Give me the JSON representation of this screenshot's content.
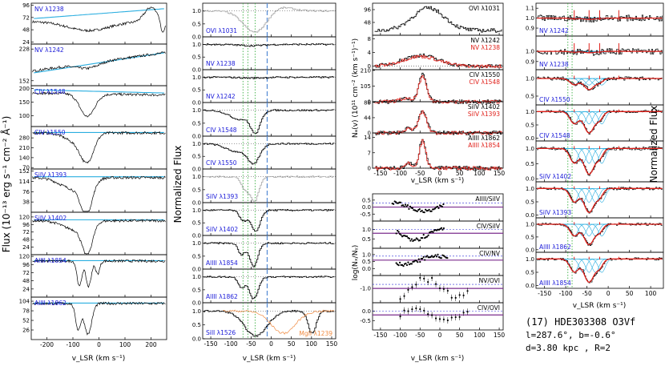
{
  "figure": {
    "info_title": "(17) HDE303308 O3Vf",
    "info_coords": "l=287.6°, b=-0.6°",
    "info_dist": "d=3.80 kpc , R=2",
    "colors": {
      "data": "#000000",
      "continuum": "#2aaee0",
      "fit": "#e0201a",
      "dotted_green": "#3cb043",
      "dashed_blue": "#5b8fd6",
      "ratio_line": "#7b2d8e",
      "ratio_dash": "#2a2ad8",
      "grey": "#a9a9a9",
      "orange": "#f08a40",
      "label_blue": "#1a1ad8"
    }
  },
  "chart_data": [
    {
      "id": "flux-column",
      "type": "line",
      "ylabel": "Flux (10⁻¹³ erg s⁻¹ cm⁻² Å⁻¹)",
      "xlabel": "v_LSR (km s⁻¹)",
      "xlim": [
        -260,
        260
      ],
      "xticks": [
        -200,
        -100,
        0,
        100,
        200
      ],
      "xticklabels": [
        "-200",
        "-100",
        "0",
        "100",
        "200"
      ],
      "panels": [
        {
          "label": "NV λ1238",
          "ylim": [
            20,
            100
          ],
          "yticks": [
            24,
            48,
            72,
            96
          ]
        },
        {
          "label": "NV λ1242",
          "ylim": [
            140,
            240
          ],
          "yticks": [
            152,
            228
          ]
        },
        {
          "label": "CIV λ1548",
          "ylim": [
            60,
            210
          ],
          "yticks": [
            100,
            150,
            200
          ]
        },
        {
          "label": "CIV λ1550",
          "ylim": [
            60,
            360
          ],
          "yticks": [
            70,
            140,
            210,
            280,
            350
          ]
        },
        {
          "label": "SiIV λ1393",
          "ylim": [
            0,
            160
          ],
          "yticks": [
            38,
            76,
            114,
            152
          ]
        },
        {
          "label": "SiIV λ1402",
          "ylim": [
            0,
            135
          ],
          "yticks": [
            24,
            48,
            72,
            96,
            120
          ]
        },
        {
          "label": "AlIII λ1854",
          "ylim": [
            0,
            125
          ],
          "yticks": [
            24,
            48,
            72,
            96,
            120
          ]
        },
        {
          "label": "AlIII λ1862",
          "ylim": [
            0,
            115
          ],
          "yticks": [
            26,
            52,
            78,
            104
          ]
        }
      ]
    },
    {
      "id": "normalized-column",
      "type": "line",
      "ylabel": "Normalized Flux",
      "xlabel": "v_LSR (km s⁻¹)",
      "xlim": [
        -170,
        160
      ],
      "xticks": [
        -150,
        -100,
        -50,
        0,
        50,
        100,
        150
      ],
      "xticklabels": [
        "-150",
        "-100",
        "-50",
        "0",
        "50",
        "100",
        "150"
      ],
      "ylim": [
        0,
        1.3
      ],
      "yticks": [
        0.0,
        0.5,
        1.0
      ],
      "yticklabels": [
        "0.0",
        "0.5",
        "1.0"
      ],
      "reference_lines": {
        "dotted_green": [
          -70,
          -58,
          -40
        ],
        "dashed_blue": [
          -10
        ]
      },
      "panels": [
        {
          "label": "OVI λ1031"
        },
        {
          "label": "NV λ1238"
        },
        {
          "label": "NV λ1242"
        },
        {
          "label": "CIV λ1548"
        },
        {
          "label": "CIV λ1550"
        },
        {
          "label": "SiIV λ1393"
        },
        {
          "label": "SiIV λ1402"
        },
        {
          "label": "AlIII λ1854"
        },
        {
          "label": "AlIII λ1862"
        },
        {
          "label": "SiII λ1526",
          "label2": "MgII λ1239"
        }
      ]
    },
    {
      "id": "column-density",
      "type": "line",
      "ylabel": "Nₐ(v) (10¹¹ cm⁻² (km s⁻¹)⁻¹)",
      "xlabel": "v_LSR (km s⁻¹)",
      "xlim": [
        -170,
        160
      ],
      "xticks": [
        -150,
        -100,
        -50,
        0,
        50,
        100,
        150
      ],
      "xticklabels": [
        "-150",
        "-100",
        "-50",
        "0",
        "50",
        "100",
        "150"
      ],
      "panels": [
        {
          "label": "OVI λ1031",
          "ylim": [
            0,
            120
          ],
          "yticks": [
            48,
            96
          ]
        },
        {
          "label": "NV λ1242",
          "label2": "NV λ1238",
          "ylim": [
            -1,
            9
          ],
          "yticks": [
            0,
            4,
            8
          ]
        },
        {
          "label": "CIV λ1550",
          "label2": "CIV λ1548",
          "ylim": [
            0,
            215
          ],
          "yticks": [
            0,
            105,
            210
          ]
        },
        {
          "label": "SiIV λ1402",
          "label2": "SiIV λ1393",
          "ylim": [
            0,
            90
          ],
          "yticks": [
            0,
            44,
            88
          ]
        },
        {
          "label": "AlIII λ1862",
          "label2": "AlIII λ1854",
          "ylim": [
            0,
            16
          ],
          "yticks": [
            0,
            7,
            14
          ]
        }
      ]
    },
    {
      "id": "ratio-column",
      "type": "scatter",
      "ylabel": "log(Nₓ/Nᵧ)",
      "xlabel": "v_LSR (km s⁻¹)",
      "xlim": [
        -170,
        160
      ],
      "xticks": [
        -150,
        -100,
        -50,
        0,
        50,
        100,
        150
      ],
      "xticklabels": [
        "-150",
        "-100",
        "-50",
        "0",
        "50",
        "100",
        "150"
      ],
      "panels": [
        {
          "label": "AlIII/SiIV",
          "yticks": [
            -0.5,
            0.0,
            0.5
          ],
          "yticklabels": [
            "-0.5",
            "0.0",
            "0.5"
          ],
          "ref": 0.0
        },
        {
          "label": "CIV/SiIV",
          "yticks": [
            0.5,
            1.0
          ],
          "yticklabels": [
            "0.5",
            "1.0"
          ],
          "ref": 0.8
        },
        {
          "label": "CIV/NV",
          "yticks": [
            0.0,
            0.5,
            1.0
          ],
          "yticklabels": [
            "0.0",
            "0.5",
            "1.0"
          ],
          "ref": 0.6
        },
        {
          "label": "NV/OVI",
          "yticks": [
            -1.0
          ],
          "yticklabels": [
            "-1.0"
          ],
          "ref": -1.0
        },
        {
          "label": "CIV/OVI",
          "yticks": [
            -0.5,
            0.0
          ],
          "yticklabels": [
            "-0.5",
            "0.0"
          ],
          "ref": -0.2
        }
      ]
    },
    {
      "id": "fit-column",
      "type": "line",
      "ylabel": "Normalized Flux",
      "xlabel": "v_LSR (km s⁻¹)",
      "xlim": [
        -170,
        130
      ],
      "xticks": [
        -150,
        -100,
        -50,
        0,
        50,
        100
      ],
      "xticklabels": [
        "-150",
        "-100",
        "-50",
        "0",
        "50",
        "100"
      ],
      "panels": [
        {
          "label": "NV λ1242",
          "yticks": [
            0.9,
            1.0,
            1.1
          ],
          "yticklabels": [
            "0.9",
            "1.0",
            "1.1"
          ]
        },
        {
          "label": "NV λ1238",
          "yticks": [
            0.9,
            1.0
          ],
          "yticklabels": [
            "0.9",
            "1.0"
          ]
        },
        {
          "label": "CIV λ1550",
          "yticks": [
            0.5,
            1.0
          ],
          "yticklabels": [
            "0.5",
            "1.0"
          ]
        },
        {
          "label": "CIV λ1548",
          "yticks": [
            0.0,
            0.5,
            1.0
          ],
          "yticklabels": [
            "0.0",
            "0.5",
            "1.0"
          ]
        },
        {
          "label": "SiIV λ1402",
          "yticks": [
            0.0,
            0.5,
            1.0
          ],
          "yticklabels": [
            "0.0",
            "0.5",
            "1.0"
          ]
        },
        {
          "label": "SiIV λ1393",
          "yticks": [
            0.0,
            0.5,
            1.0
          ],
          "yticklabels": [
            "0.0",
            "0.5",
            "1.0"
          ]
        },
        {
          "label": "AlIII λ1862",
          "yticks": [
            0.0,
            0.5,
            1.0
          ],
          "yticklabels": [
            "0.0",
            "0.5",
            "1.0"
          ]
        },
        {
          "label": "AlIII λ1854",
          "yticks": [
            0.0,
            0.5,
            1.0
          ],
          "yticklabels": [
            "0.0",
            "0.5",
            "1.0"
          ]
        }
      ]
    }
  ]
}
